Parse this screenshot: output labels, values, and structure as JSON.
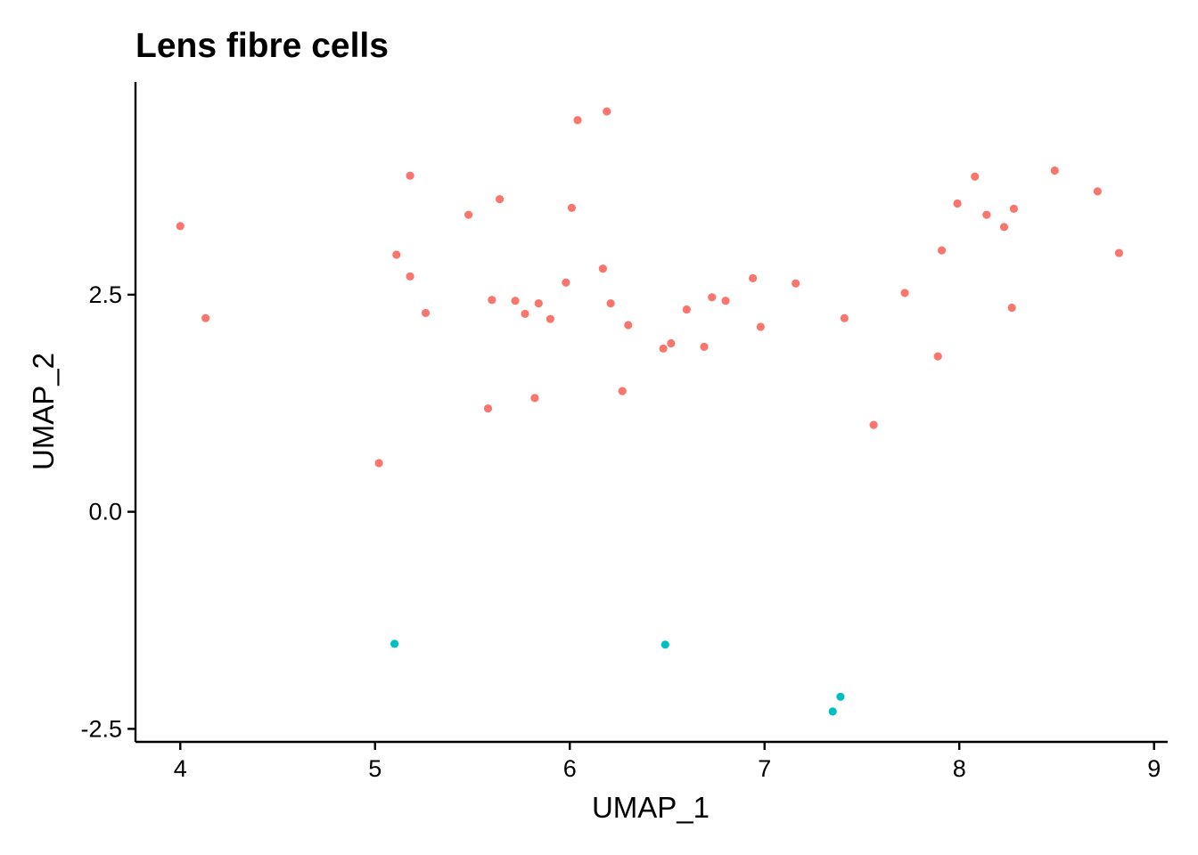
{
  "chart_data": {
    "type": "scatter",
    "title": "Lens fibre cells",
    "xlabel": "UMAP_1",
    "ylabel": "UMAP_2",
    "xlim": [
      3.77,
      9.07
    ],
    "ylim": [
      -2.65,
      4.95
    ],
    "xticks": [
      4,
      5,
      6,
      7,
      8,
      9
    ],
    "xtick_labels": [
      "4",
      "5",
      "6",
      "7",
      "8",
      "9"
    ],
    "yticks": [
      -2.5,
      0.0,
      2.5
    ],
    "ytick_labels": [
      "-2.5",
      "0.0",
      "2.5"
    ],
    "grid": false,
    "legend": "none",
    "series": [
      {
        "color": "#F8766D",
        "points": [
          [
            4.0,
            3.29
          ],
          [
            4.13,
            2.23
          ],
          [
            5.02,
            0.56
          ],
          [
            5.11,
            2.96
          ],
          [
            5.18,
            3.87
          ],
          [
            5.18,
            2.71
          ],
          [
            5.26,
            2.29
          ],
          [
            5.48,
            3.42
          ],
          [
            5.58,
            1.19
          ],
          [
            5.6,
            2.44
          ],
          [
            5.64,
            3.6
          ],
          [
            5.72,
            2.43
          ],
          [
            5.77,
            2.28
          ],
          [
            5.82,
            1.31
          ],
          [
            5.84,
            2.4
          ],
          [
            5.9,
            2.22
          ],
          [
            5.98,
            2.64
          ],
          [
            6.01,
            3.5
          ],
          [
            6.04,
            4.51
          ],
          [
            6.17,
            2.8
          ],
          [
            6.19,
            4.61
          ],
          [
            6.21,
            2.4
          ],
          [
            6.27,
            1.39
          ],
          [
            6.3,
            2.15
          ],
          [
            6.48,
            1.88
          ],
          [
            6.52,
            1.94
          ],
          [
            6.6,
            2.33
          ],
          [
            6.69,
            1.9
          ],
          [
            6.73,
            2.47
          ],
          [
            6.8,
            2.43
          ],
          [
            6.94,
            2.69
          ],
          [
            6.98,
            2.13
          ],
          [
            7.16,
            2.63
          ],
          [
            7.41,
            2.23
          ],
          [
            7.56,
            1.0
          ],
          [
            7.72,
            2.52
          ],
          [
            7.89,
            1.79
          ],
          [
            7.91,
            3.01
          ],
          [
            7.99,
            3.55
          ],
          [
            8.08,
            3.86
          ],
          [
            8.14,
            3.42
          ],
          [
            8.23,
            3.28
          ],
          [
            8.27,
            2.35
          ],
          [
            8.28,
            3.49
          ],
          [
            8.49,
            3.93
          ],
          [
            8.71,
            3.69
          ],
          [
            8.82,
            2.98
          ]
        ]
      },
      {
        "color": "#00BFC4",
        "points": [
          [
            5.1,
            -1.52
          ],
          [
            6.49,
            -1.53
          ],
          [
            7.35,
            -2.3
          ],
          [
            7.39,
            -2.13
          ]
        ]
      }
    ]
  }
}
